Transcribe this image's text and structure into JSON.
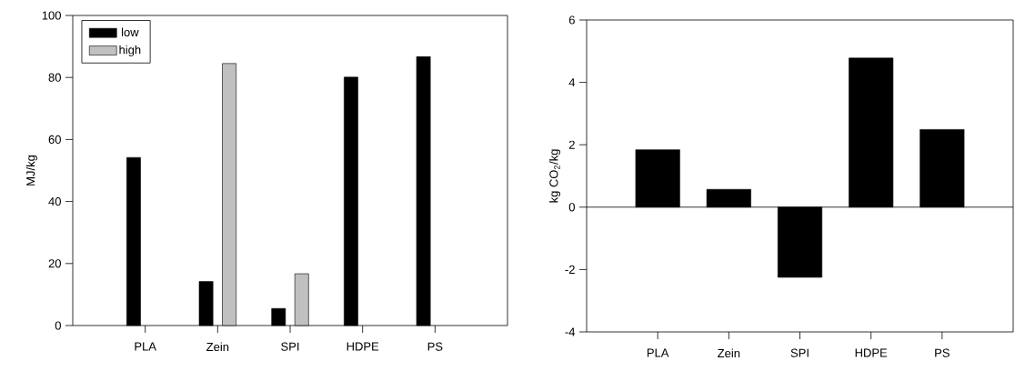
{
  "chart_data": [
    {
      "type": "bar",
      "categories": [
        "PLA",
        "Zein",
        "SPI",
        "HDPE",
        "PS"
      ],
      "ylabel": "MJ/kg",
      "ylim": [
        0,
        100
      ],
      "yticks": [
        0,
        20,
        40,
        60,
        80,
        100
      ],
      "legend": "top left",
      "series": [
        {
          "name": "low",
          "color": "#000000",
          "values": [
            54.2,
            14.2,
            5.5,
            80.1,
            86.7
          ]
        },
        {
          "name": "high",
          "color": "#c0c0c0",
          "values": [
            null,
            84.5,
            16.7,
            null,
            null
          ]
        }
      ]
    },
    {
      "type": "bar",
      "categories": [
        "PLA",
        "Zein",
        "SPI",
        "HDPE",
        "PS"
      ],
      "ylabel": "kg CO$_{2}$/kg",
      "ylim": [
        -4,
        6
      ],
      "yticks": [
        -4,
        -2,
        0,
        2,
        4,
        6
      ],
      "ref_lines": [
        {
          "axis": "y",
          "value": 0
        }
      ],
      "series": [
        {
          "color": "#000000",
          "values": [
            1.84,
            0.57,
            -2.25,
            4.78,
            2.49
          ]
        }
      ]
    }
  ]
}
